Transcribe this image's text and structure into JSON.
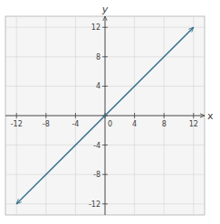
{
  "chart_data": {
    "type": "line",
    "xlabel": "x",
    "ylabel": "y",
    "x": [
      -12,
      12
    ],
    "series": [
      {
        "color": "#2e6b8a",
        "values": [
          -12,
          12
        ]
      }
    ],
    "xlim": [
      -13.5,
      13.5
    ],
    "ylim": [
      -13.5,
      13.5
    ],
    "xticks": [
      -12,
      -8,
      -4,
      0,
      4,
      8,
      12
    ],
    "yticks": [
      -12,
      -8,
      -4,
      0,
      4,
      8,
      12
    ],
    "grid": true
  }
}
